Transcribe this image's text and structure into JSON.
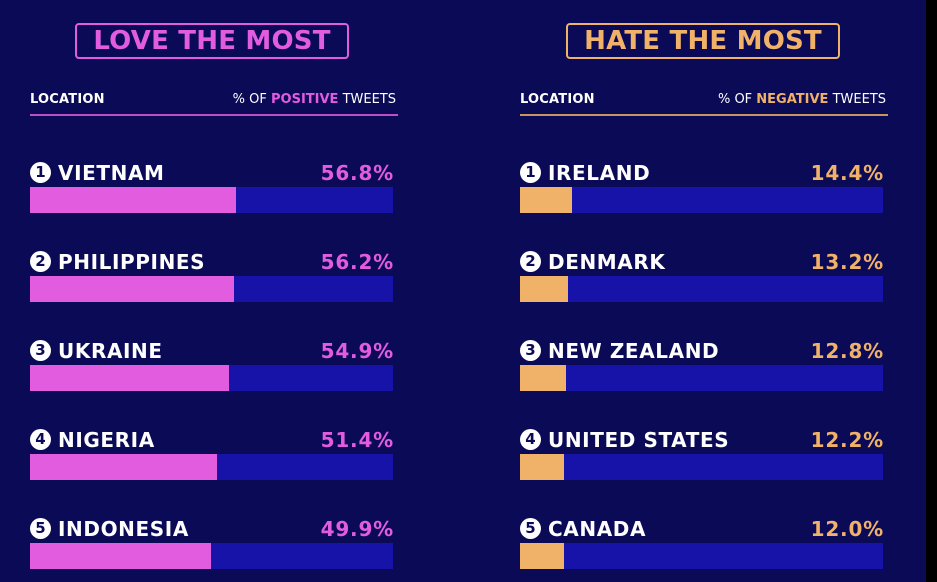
{
  "chart_data": [
    {
      "type": "bar",
      "title": "LOVE THE MOST",
      "xlabel": "LOCATION",
      "ylabel_prefix": "% OF",
      "ylabel_keyword": "POSITIVE",
      "ylabel_suffix": "TWEETS",
      "accent_color": "#e25ce0",
      "track_color": "#1712a8",
      "categories": [
        "VIETNAM",
        "PHILIPPINES",
        "UKRAINE",
        "NIGERIA",
        "INDONESIA"
      ],
      "ranks": [
        "1",
        "2",
        "3",
        "4",
        "5"
      ],
      "values": [
        56.8,
        56.2,
        54.9,
        51.4,
        49.9
      ],
      "value_labels": [
        "56.8%",
        "56.2%",
        "54.9%",
        "51.4%",
        "49.9%"
      ],
      "value_max": 100
    },
    {
      "type": "bar",
      "title": "HATE THE MOST",
      "xlabel": "LOCATION",
      "ylabel_prefix": "% OF",
      "ylabel_keyword": "NEGATIVE",
      "ylabel_suffix": "TWEETS",
      "accent_color": "#f0b169",
      "track_color": "#1712a8",
      "categories": [
        "IRELAND",
        "DENMARK",
        "NEW ZEALAND",
        "UNITED STATES",
        "CANADA"
      ],
      "ranks": [
        "1",
        "2",
        "3",
        "4",
        "5"
      ],
      "values": [
        14.4,
        13.2,
        12.8,
        12.2,
        12.0
      ],
      "value_labels": [
        "14.4%",
        "13.2%",
        "12.8%",
        "12.2%",
        "12.0%"
      ],
      "value_max": 100
    }
  ]
}
